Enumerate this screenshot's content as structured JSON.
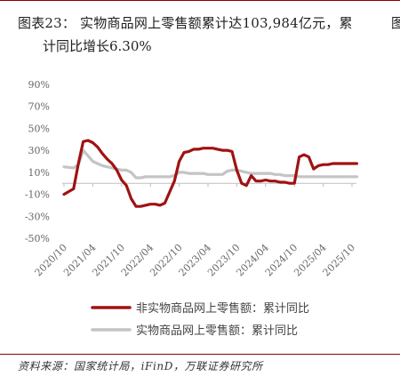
{
  "title": {
    "line1": "图表23：  实物商品网上零售额累计达103,984亿元，累",
    "line2": "计同比增长6.30%",
    "edge_glyph": "图"
  },
  "source": "资料来源：国家统计局，iFinD，万联证券研究所",
  "chart_data": {
    "type": "line",
    "y_ticks": [
      "90%",
      "70%",
      "50%",
      "30%",
      "10%",
      "-10%",
      "-30%",
      "-50%"
    ],
    "ylim": [
      -50,
      90
    ],
    "x_ticks": [
      "2020/10",
      "2021/04",
      "2021/10",
      "2022/04",
      "2022/10",
      "2023/04",
      "2023/10",
      "2024/04",
      "2024/10",
      "2025/04",
      "2025/10"
    ],
    "x_tick_months": [
      0,
      6,
      12,
      18,
      24,
      30,
      36,
      42,
      48,
      54,
      60
    ],
    "grid": false,
    "legend_position": "bottom",
    "series": [
      {
        "name": "非实物商品网上零售额：累计同比",
        "color": "#a01212",
        "x_months": [
          0,
          2,
          3,
          4,
          5,
          6,
          7,
          8,
          9,
          10,
          11,
          12,
          13,
          14,
          15,
          16,
          17,
          18,
          19,
          20,
          21,
          22,
          23,
          24,
          25,
          26,
          27,
          28,
          29,
          30,
          31,
          32,
          33,
          34,
          35,
          36,
          37,
          38,
          39,
          40,
          41,
          42,
          43,
          44,
          45,
          46,
          47,
          48,
          49,
          50,
          51,
          52,
          53,
          54,
          55,
          56,
          57,
          58,
          59,
          60,
          61
        ],
        "values": [
          -10,
          -5,
          18,
          38,
          39,
          37,
          33,
          27,
          22,
          18,
          12,
          3,
          -2,
          -14,
          -21,
          -21,
          -20,
          -19,
          -19,
          -20,
          -18,
          -8,
          2,
          20,
          28,
          29,
          31,
          31,
          32,
          32,
          32,
          31,
          30,
          30,
          29,
          12,
          0,
          -2,
          7,
          2,
          2,
          3,
          2,
          2,
          1,
          1,
          0,
          0,
          24,
          26,
          24,
          13,
          16,
          17,
          17,
          18,
          18,
          18,
          18,
          18,
          18
        ]
      },
      {
        "name": "实物商品网上零售额：累计同比",
        "color": "#c4c4c4",
        "x_months": [
          0,
          2,
          3,
          4,
          5,
          6,
          7,
          8,
          9,
          10,
          11,
          12,
          13,
          14,
          15,
          16,
          17,
          18,
          19,
          20,
          21,
          22,
          23,
          24,
          25,
          26,
          27,
          28,
          29,
          30,
          31,
          32,
          33,
          34,
          35,
          36,
          37,
          38,
          39,
          40,
          41,
          42,
          43,
          44,
          45,
          46,
          47,
          48,
          49,
          50,
          51,
          52,
          53,
          54,
          55,
          56,
          57,
          58,
          59,
          60,
          61
        ],
        "values": [
          15,
          14,
          17,
          30,
          25,
          20,
          18,
          16,
          15,
          14,
          13,
          12,
          12,
          10,
          5,
          5,
          6,
          6,
          6,
          6,
          6,
          6,
          7,
          10,
          10,
          9,
          9,
          9,
          9,
          8,
          8,
          8,
          8,
          11,
          12,
          12,
          11,
          10,
          9,
          9,
          9,
          9,
          9,
          8,
          8,
          7,
          7,
          7,
          6,
          6,
          6,
          6,
          6,
          6,
          6,
          6,
          6,
          6,
          6,
          6,
          6
        ]
      }
    ]
  }
}
